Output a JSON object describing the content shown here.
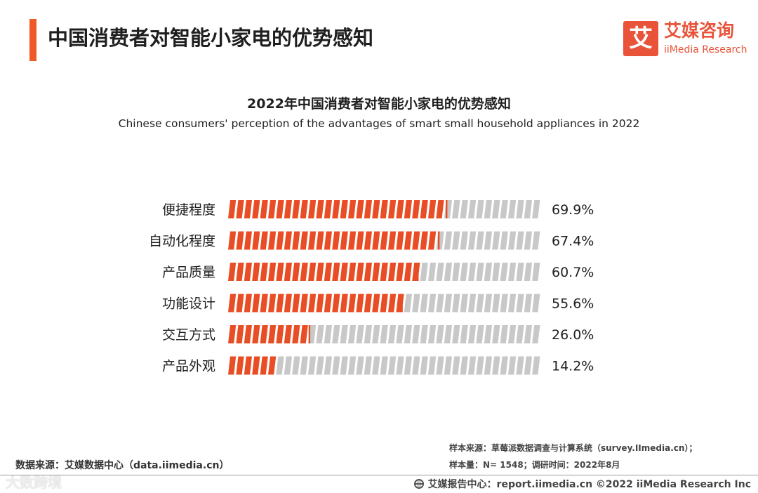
{
  "header": {
    "title": "中国消费者对智能小家电的优势感知",
    "accent_color": "#f05a28"
  },
  "logo": {
    "mark": "艾",
    "name_cn": "艾媒咨询",
    "name_en": "iiMedia Research",
    "brand_color": "#e8533a"
  },
  "chart_data": {
    "type": "bar",
    "orientation": "horizontal",
    "title": "2022年中国消费者对智能小家电的优势感知",
    "subtitle": "Chinese consumers' perception of the advantages of smart small household appliances in 2022",
    "categories": [
      "便捷程度",
      "自动化程度",
      "产品质量",
      "功能设计",
      "交互方式",
      "产品外观"
    ],
    "values": [
      69.9,
      67.4,
      60.7,
      55.6,
      26.0,
      14.2
    ],
    "value_labels": [
      "69.9%",
      "67.4%",
      "60.7%",
      "55.6%",
      "26.0%",
      "14.2%"
    ],
    "xlim": [
      0,
      100
    ],
    "grid": false,
    "legend": "none",
    "bar_color": "#e84e25",
    "track_color": "#c8c8c8"
  },
  "footer": {
    "data_source": "数据来源：艾媒数据中心（data.iimedia.cn）",
    "sample_source": "样本来源：草莓派数据调查与计算系统（survey.IImedia.cn）；",
    "sample_info": "样本量：N= 1548；调研时间：2022年8月",
    "report_center": "艾媒报告中心：report.iimedia.cn  ©2022  iiMedia Research  Inc",
    "watermark": "大数跨境"
  }
}
